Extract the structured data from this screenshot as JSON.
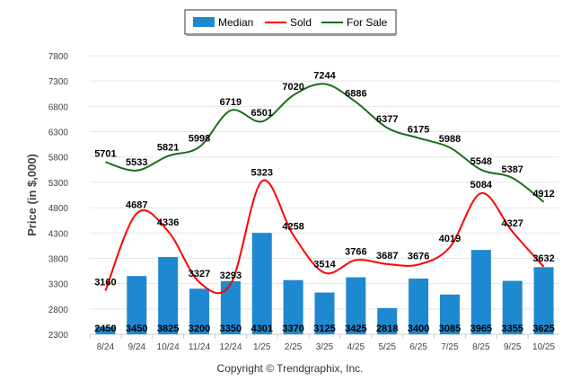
{
  "chart_data": {
    "type": "bar",
    "categories": [
      "8/24",
      "9/24",
      "10/24",
      "11/24",
      "12/24",
      "1/25",
      "2/25",
      "3/25",
      "4/25",
      "5/25",
      "6/25",
      "7/25",
      "8/25",
      "9/25",
      "10/25"
    ],
    "series": [
      {
        "name": "Median",
        "kind": "bar",
        "color": "#1e88d0",
        "values": [
          2450,
          3450,
          3825,
          3200,
          3350,
          4301,
          3370,
          3125,
          3425,
          2818,
          3400,
          3085,
          3965,
          3355,
          3625
        ]
      },
      {
        "name": "Sold",
        "kind": "line",
        "color": "#ff0000",
        "values": [
          3160,
          4687,
          4336,
          3327,
          3293,
          5323,
          4258,
          3514,
          3766,
          3687,
          3676,
          4019,
          5084,
          4327,
          3632
        ]
      },
      {
        "name": "For Sale",
        "kind": "line",
        "color": "#1a6e1a",
        "values": [
          5701,
          5533,
          5821,
          5998,
          6719,
          6501,
          7020,
          7244,
          6886,
          6377,
          6175,
          5988,
          5548,
          5387,
          4912
        ]
      }
    ],
    "ylabel": "Price (in $,000)",
    "xlabel": "",
    "ylim": [
      2300,
      7800
    ],
    "yticks": [
      7800,
      7300,
      6800,
      6300,
      5800,
      5300,
      4800,
      4300,
      3800,
      3300,
      2800,
      2300
    ],
    "legend_position": "top-center",
    "grid": true
  },
  "footer": "Copyright © Trendgraphix, Inc."
}
